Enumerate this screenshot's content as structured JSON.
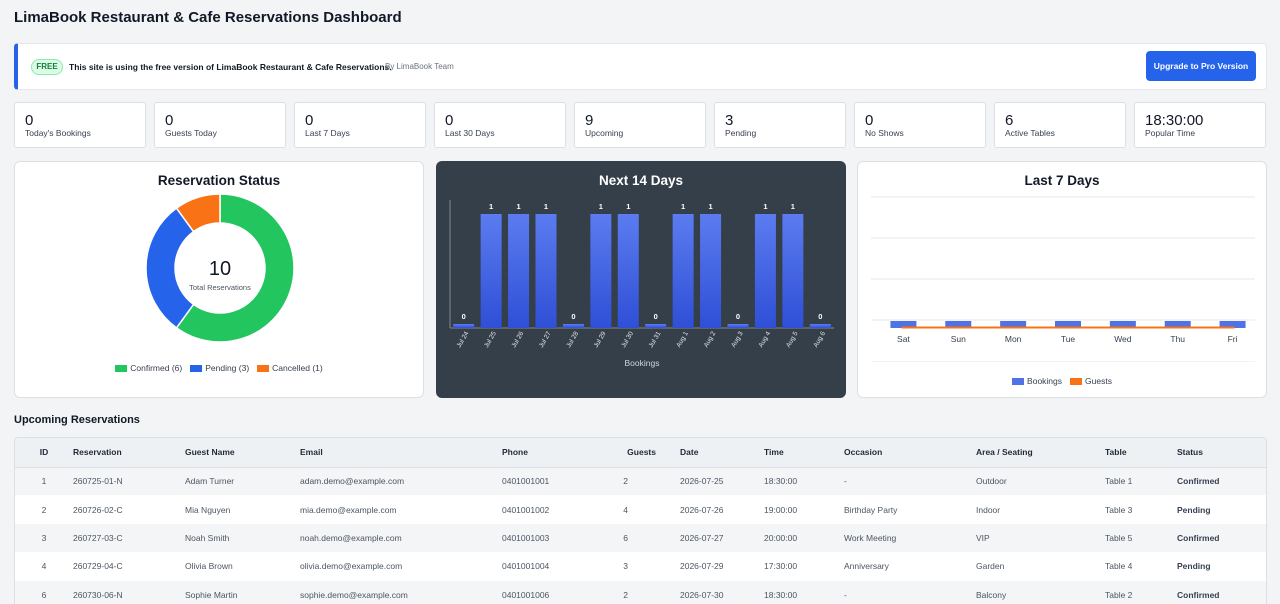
{
  "header": {
    "title": "LimaBook Restaurant & Cafe Reservations Dashboard"
  },
  "notice": {
    "badge": "FREE",
    "text": "This site is using the free version of LimaBook Restaurant & Cafe Reservations.",
    "by": "By LimaBook Team",
    "button": "Upgrade to Pro Version"
  },
  "stats": [
    {
      "value": "0",
      "label": "Today's Bookings"
    },
    {
      "value": "0",
      "label": "Guests Today"
    },
    {
      "value": "0",
      "label": "Last 7 Days"
    },
    {
      "value": "0",
      "label": "Last 30 Days"
    },
    {
      "value": "9",
      "label": "Upcoming"
    },
    {
      "value": "3",
      "label": "Pending"
    },
    {
      "value": "0",
      "label": "No Shows"
    },
    {
      "value": "6",
      "label": "Active Tables"
    },
    {
      "value": "18:30:00",
      "label": "Popular Time"
    }
  ],
  "chart_data": [
    {
      "type": "pie",
      "title": "Reservation Status",
      "center_value": "10",
      "center_label": "Total Reservations",
      "labels": [
        "Confirmed (6)",
        "Pending (3)",
        "Cancelled (1)"
      ],
      "values": [
        6,
        3,
        1
      ],
      "colors": [
        "#22c55e",
        "#2563eb",
        "#f97316"
      ],
      "legend": "bottom"
    },
    {
      "type": "bar",
      "title": "Next 14 Days",
      "categories": [
        "Jul 24",
        "Jul 25",
        "Jul 26",
        "Jul 27",
        "Jul 28",
        "Jul 29",
        "Jul 30",
        "Jul 31",
        "Aug 1",
        "Aug 2",
        "Aug 3",
        "Aug 4",
        "Aug 5",
        "Aug 6"
      ],
      "values": [
        0,
        1,
        1,
        1,
        0,
        1,
        1,
        0,
        1,
        1,
        0,
        1,
        1,
        0
      ],
      "xlabel": "Bookings",
      "ylim": [
        0,
        1
      ],
      "color": "#4f72e6",
      "background": "#343f49"
    },
    {
      "type": "bar",
      "title": "Last 7 Days",
      "categories": [
        "Sat",
        "Sun",
        "Mon",
        "Tue",
        "Wed",
        "Thu",
        "Fri"
      ],
      "series": [
        {
          "name": "Bookings",
          "values": [
            0,
            0,
            0,
            0,
            0,
            0,
            0
          ],
          "color": "#4f72e6"
        },
        {
          "name": "Guests",
          "values": [
            0,
            0,
            0,
            0,
            0,
            0,
            0
          ],
          "color": "#f97316"
        }
      ],
      "legend": "bottom",
      "grid": true
    }
  ],
  "upcoming": {
    "title": "Upcoming Reservations",
    "columns": [
      "ID",
      "Reservation",
      "Guest Name",
      "Email",
      "Phone",
      "Guests",
      "Date",
      "Time",
      "Occasion",
      "Area / Seating",
      "Table",
      "Status"
    ],
    "rows": [
      [
        "1",
        "260725-01-N",
        "Adam Turner",
        "adam.demo@example.com",
        "0401001001",
        "2",
        "2026-07-25",
        "18:30:00",
        "-",
        "Outdoor",
        "Table 1",
        "Confirmed"
      ],
      [
        "2",
        "260726-02-C",
        "Mia Nguyen",
        "mia.demo@example.com",
        "0401001002",
        "4",
        "2026-07-26",
        "19:00:00",
        "Birthday Party",
        "Indoor",
        "Table 3",
        "Pending"
      ],
      [
        "3",
        "260727-03-C",
        "Noah Smith",
        "noah.demo@example.com",
        "0401001003",
        "6",
        "2026-07-27",
        "20:00:00",
        "Work Meeting",
        "VIP",
        "Table 5",
        "Confirmed"
      ],
      [
        "4",
        "260729-04-C",
        "Olivia Brown",
        "olivia.demo@example.com",
        "0401001004",
        "3",
        "2026-07-29",
        "17:30:00",
        "Anniversary",
        "Garden",
        "Table 4",
        "Pending"
      ],
      [
        "6",
        "260730-06-N",
        "Sophie Martin",
        "sophie.demo@example.com",
        "0401001006",
        "2",
        "2026-07-30",
        "18:30:00",
        "-",
        "Balcony",
        "Table 2",
        "Confirmed"
      ]
    ]
  }
}
